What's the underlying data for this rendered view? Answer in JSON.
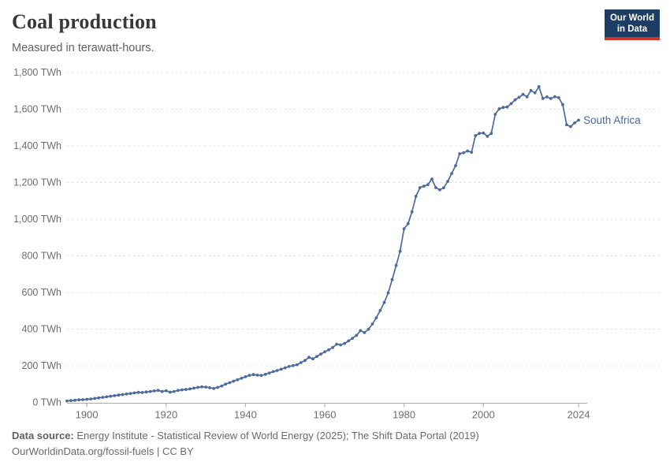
{
  "header": {
    "title": "Coal production",
    "subtitle": "Measured in terawatt-hours.",
    "logo": {
      "line1": "Our World",
      "line2": "in Data"
    }
  },
  "footer": {
    "source_label": "Data source:",
    "source_text": "Energy Institute - Statistical Review of World Energy (2025); The Shift Data Portal (2019)",
    "license_line": "OurWorldinData.org/fossil-fuels | CC BY"
  },
  "colors": {
    "line": "#4C6A9C",
    "grid": "#dcdcdc",
    "axis": "#ababab",
    "tick_label": "#6e6e6e",
    "logo_bg": "#1D3D63",
    "logo_underline": "#CF342B"
  },
  "chart_data": {
    "type": "line",
    "title": "Coal production",
    "subtitle": "Measured in terawatt-hours.",
    "unit": "TWh",
    "grid": "horizontal-dashed",
    "legend_position": "end-of-line-label",
    "xlim": [
      1895,
      2024
    ],
    "ylim": [
      0,
      1800
    ],
    "xticks": [
      1900,
      1920,
      1940,
      1960,
      1980,
      2000,
      2024
    ],
    "yticks": [
      {
        "value": 0,
        "label": "0 TWh"
      },
      {
        "value": 200,
        "label": "200 TWh"
      },
      {
        "value": 400,
        "label": "400 TWh"
      },
      {
        "value": 600,
        "label": "600 TWh"
      },
      {
        "value": 800,
        "label": "800 TWh"
      },
      {
        "value": 1000,
        "label": "1,000 TWh"
      },
      {
        "value": 1200,
        "label": "1,200 TWh"
      },
      {
        "value": 1400,
        "label": "1,400 TWh"
      },
      {
        "value": 1600,
        "label": "1,600 TWh"
      },
      {
        "value": 1800,
        "label": "1,800 TWh"
      }
    ],
    "series": [
      {
        "name": "South Africa",
        "color": "#4C6A9C",
        "x": [
          1895,
          1896,
          1897,
          1898,
          1899,
          1900,
          1901,
          1902,
          1903,
          1904,
          1905,
          1906,
          1907,
          1908,
          1909,
          1910,
          1911,
          1912,
          1913,
          1914,
          1915,
          1916,
          1917,
          1918,
          1919,
          1920,
          1921,
          1922,
          1923,
          1924,
          1925,
          1926,
          1927,
          1928,
          1929,
          1930,
          1931,
          1932,
          1933,
          1934,
          1935,
          1936,
          1937,
          1938,
          1939,
          1940,
          1941,
          1942,
          1943,
          1944,
          1945,
          1946,
          1947,
          1948,
          1949,
          1950,
          1951,
          1952,
          1953,
          1954,
          1955,
          1956,
          1957,
          1958,
          1959,
          1960,
          1961,
          1962,
          1963,
          1964,
          1965,
          1966,
          1967,
          1968,
          1969,
          1970,
          1971,
          1972,
          1973,
          1974,
          1975,
          1976,
          1977,
          1978,
          1979,
          1980,
          1981,
          1982,
          1983,
          1984,
          1985,
          1986,
          1987,
          1988,
          1989,
          1990,
          1991,
          1992,
          1993,
          1994,
          1995,
          1996,
          1997,
          1998,
          1999,
          2000,
          2001,
          2002,
          2003,
          2004,
          2005,
          2006,
          2007,
          2008,
          2009,
          2010,
          2011,
          2012,
          2013,
          2014,
          2015,
          2016,
          2017,
          2018,
          2019,
          2020,
          2021,
          2022,
          2023,
          2024
        ],
        "values": [
          8,
          10,
          12,
          14,
          15,
          17,
          19,
          22,
          25,
          28,
          31,
          34,
          37,
          40,
          43,
          46,
          49,
          52,
          55,
          54,
          57,
          60,
          63,
          66,
          60,
          64,
          56,
          60,
          66,
          69,
          71,
          74,
          78,
          82,
          85,
          84,
          80,
          76,
          82,
          90,
          100,
          108,
          116,
          124,
          132,
          140,
          148,
          152,
          149,
          147,
          153,
          161,
          168,
          174,
          181,
          189,
          196,
          201,
          206,
          217,
          229,
          246,
          238,
          251,
          264,
          276,
          287,
          300,
          318,
          314,
          322,
          336,
          350,
          366,
          392,
          381,
          399,
          428,
          462,
          502,
          546,
          598,
          670,
          748,
          825,
          948,
          975,
          1040,
          1125,
          1172,
          1180,
          1188,
          1219,
          1172,
          1160,
          1171,
          1206,
          1249,
          1292,
          1357,
          1362,
          1372,
          1365,
          1456,
          1468,
          1470,
          1452,
          1468,
          1572,
          1602,
          1610,
          1612,
          1630,
          1651,
          1665,
          1681,
          1667,
          1702,
          1689,
          1723,
          1658,
          1667,
          1658,
          1668,
          1663,
          1625,
          1515,
          1505,
          1525,
          1540
        ]
      }
    ]
  }
}
